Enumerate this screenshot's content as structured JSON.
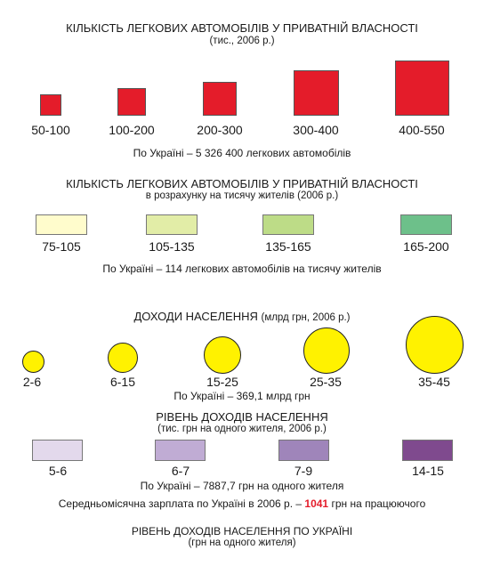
{
  "section1": {
    "title": "КІЛЬКІСТЬ ЛЕГКОВИХ АВТОМОБІЛІВ У ПРИВАТНІЙ ВЛАСНОСТІ",
    "subtitle": "(тис., 2006 р.)",
    "items": [
      {
        "label": "50-100",
        "color": "#e41c2a"
      },
      {
        "label": "100-200",
        "color": "#e41c2a"
      },
      {
        "label": "200-300",
        "color": "#e41c2a"
      },
      {
        "label": "300-400",
        "color": "#e41c2a"
      },
      {
        "label": "400-550",
        "color": "#e41c2a"
      }
    ],
    "total": "По Україні – 5 326 400 легкових автомобілів"
  },
  "section2": {
    "title": "КІЛЬКІСТЬ ЛЕГКОВИХ АВТОМОБІЛІВ У ПРИВАТНІЙ ВЛАСНОСТІ",
    "subtitle": "в розрахунку на тисячу жителів (2006 р.)",
    "items": [
      {
        "label": "75-105",
        "color": "#fffccc"
      },
      {
        "label": "105-135",
        "color": "#e2eda7"
      },
      {
        "label": "135-165",
        "color": "#bddc87"
      },
      {
        "label": "165-200",
        "color": "#6dc08a"
      }
    ],
    "total": "По Україні – 114 легкових автомобілів на тисячу жителів"
  },
  "section3": {
    "title": "ДОХОДИ НАСЕЛЕННЯ",
    "title_suffix": "(млрд грн, 2006 р.)",
    "items": [
      {
        "label": "2-6",
        "color": "#fff200"
      },
      {
        "label": "6-15",
        "color": "#fff200"
      },
      {
        "label": "15-25",
        "color": "#fff200"
      },
      {
        "label": "25-35",
        "color": "#fff200"
      },
      {
        "label": "35-45",
        "color": "#fff200"
      }
    ],
    "total": "По Україні – 369,1 млрд грн"
  },
  "section4": {
    "title": "РІВЕНЬ ДОХОДІВ НАСЕЛЕННЯ",
    "subtitle": "(тис. грн на одного жителя, 2006 р.)",
    "items": [
      {
        "label": "5-6",
        "color": "#e3d9ec"
      },
      {
        "label": "6-7",
        "color": "#c0acd4"
      },
      {
        "label": "7-9",
        "color": "#9f85ba"
      },
      {
        "label": "14-15",
        "color": "#7f4a8e"
      }
    ],
    "total": "По Україні – 7887,7 грн на одного жителя",
    "salary_prefix": "Середньомісячна зарплата по Україні в 2006 р. –",
    "salary_value": "1041",
    "salary_suffix": "грн на працюючого"
  },
  "section5": {
    "title": "РІВЕНЬ ДОХОДІВ НАСЕЛЕННЯ ПО УКРАЇНІ",
    "subtitle": "(грн на одного жителя)"
  }
}
